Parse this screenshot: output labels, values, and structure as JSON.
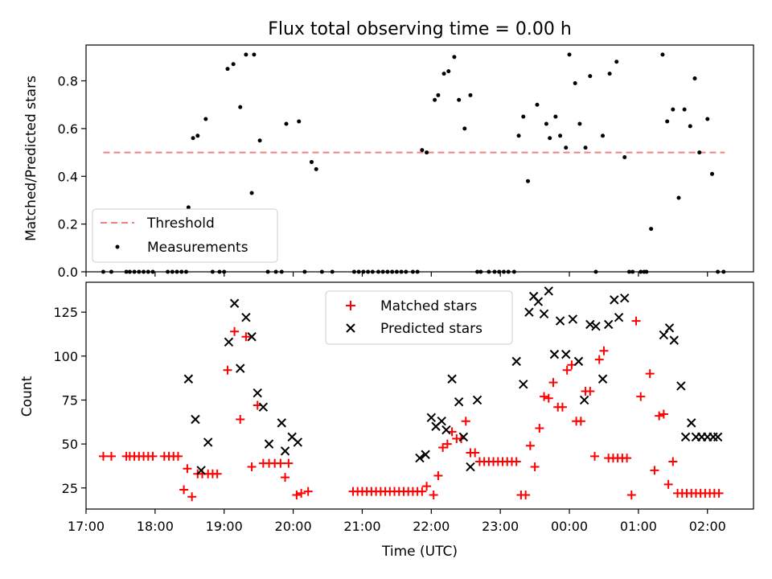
{
  "chart_data": [
    {
      "type": "scatter",
      "title": "Flux total observing time = 0.00 h",
      "xlabel": "",
      "ylabel": "Matched/Predicted stars",
      "xlim": [
        "17:00",
        "02:40"
      ],
      "ylim": [
        0,
        0.95
      ],
      "yticks": [
        0.0,
        0.2,
        0.4,
        0.6,
        0.8
      ],
      "ytick_labels": [
        "0.0",
        "0.2",
        "0.4",
        "0.6",
        "0.8"
      ],
      "grid": false,
      "legend": {
        "placement": "lower-left",
        "entries": [
          "Threshold",
          "Measurements"
        ]
      },
      "series": [
        {
          "name": "Threshold",
          "style": "dashed-line",
          "color": "#f08080",
          "x": [
            "17:15",
            "02:15"
          ],
          "y": [
            0.5,
            0.5
          ]
        },
        {
          "name": "Measurements",
          "style": "dot",
          "color": "#000000",
          "x": [
            "17:15",
            "17:22",
            "17:35",
            "17:38",
            "17:42",
            "17:46",
            "17:50",
            "17:54",
            "17:58",
            "18:11",
            "18:15",
            "18:19",
            "18:23",
            "18:27",
            "18:29",
            "18:33",
            "18:37",
            "18:44",
            "18:50",
            "18:56",
            "19:00",
            "19:03",
            "19:08",
            "19:14",
            "19:19",
            "19:24",
            "19:26",
            "19:31",
            "19:38",
            "19:45",
            "19:50",
            "19:54",
            "20:05",
            "20:10",
            "20:16",
            "20:20",
            "20:25",
            "20:34",
            "20:53",
            "20:57",
            "21:01",
            "21:05",
            "21:09",
            "21:14",
            "21:18",
            "21:22",
            "21:26",
            "21:30",
            "21:34",
            "21:38",
            "21:44",
            "21:48",
            "21:52",
            "21:56",
            "22:03",
            "22:06",
            "22:11",
            "22:15",
            "22:20",
            "22:24",
            "22:29",
            "22:34",
            "22:40",
            "22:43",
            "22:50",
            "22:55",
            "22:59",
            "23:03",
            "23:07",
            "23:12",
            "23:16",
            "23:20",
            "23:24",
            "23:32",
            "23:40",
            "23:43",
            "23:48",
            "23:52",
            "23:57",
            "00:00",
            "00:05",
            "00:09",
            "00:14",
            "00:18",
            "00:23",
            "00:29",
            "00:35",
            "00:41",
            "00:48",
            "00:52",
            "00:55",
            "01:02",
            "01:05",
            "01:07",
            "01:11",
            "01:21",
            "01:25",
            "01:30",
            "01:35",
            "01:40",
            "01:45",
            "01:49",
            "01:53",
            "02:00",
            "02:04",
            "02:09",
            "02:14"
          ],
          "y": [
            0.0,
            0.0,
            0.0,
            0.0,
            0.0,
            0.0,
            0.0,
            0.0,
            0.0,
            0.0,
            0.0,
            0.0,
            0.0,
            0.0,
            0.27,
            0.56,
            0.57,
            0.64,
            0.0,
            0.0,
            0.0,
            0.85,
            0.87,
            0.69,
            0.91,
            0.33,
            0.91,
            0.55,
            0.0,
            0.0,
            0.0,
            0.62,
            0.63,
            0.0,
            0.46,
            0.43,
            0.0,
            0.0,
            0.0,
            0.0,
            0.0,
            0.0,
            0.0,
            0.0,
            0.0,
            0.0,
            0.0,
            0.0,
            0.0,
            0.0,
            0.0,
            0.0,
            0.51,
            0.5,
            0.72,
            0.74,
            0.83,
            0.84,
            0.9,
            0.72,
            0.6,
            0.74,
            0.0,
            0.0,
            0.0,
            0.0,
            0.0,
            0.0,
            0.0,
            0.0,
            0.57,
            0.65,
            0.38,
            0.7,
            0.62,
            0.56,
            0.65,
            0.57,
            0.52,
            0.91,
            0.79,
            0.62,
            0.52,
            0.82,
            0.0,
            0.57,
            0.83,
            0.88,
            0.48,
            0.0,
            0.0,
            0.0,
            0.0,
            0.0,
            0.18,
            0.91,
            0.63,
            0.68,
            0.31,
            0.68,
            0.61,
            0.81,
            0.5,
            0.64,
            0.41,
            0.0,
            0.0
          ]
        }
      ]
    },
    {
      "type": "scatter",
      "title": "",
      "xlabel": "Time (UTC)",
      "ylabel": "Count",
      "xlim": [
        "17:00",
        "02:40"
      ],
      "ylim": [
        13,
        142
      ],
      "yticks": [
        25,
        50,
        75,
        100,
        125
      ],
      "ytick_labels": [
        "25",
        "50",
        "75",
        "100",
        "125"
      ],
      "xticks": [
        "17:00",
        "18:00",
        "19:00",
        "20:00",
        "21:00",
        "22:00",
        "23:00",
        "00:00",
        "01:00",
        "02:00"
      ],
      "xtick_labels": [
        "17:00",
        "18:00",
        "19:00",
        "20:00",
        "21:00",
        "22:00",
        "23:00",
        "00:00",
        "01:00",
        "02:00"
      ],
      "grid": false,
      "legend": {
        "placement": "top-center",
        "entries": [
          "Matched stars",
          "Predicted stars"
        ]
      },
      "series": [
        {
          "name": "Matched stars",
          "marker": "plus",
          "color": "#ff0000",
          "x": [
            "17:15",
            "17:22",
            "17:35",
            "17:38",
            "17:42",
            "17:46",
            "17:50",
            "17:54",
            "17:58",
            "18:08",
            "18:12",
            "18:16",
            "18:20",
            "18:25",
            "18:28",
            "18:32",
            "18:37",
            "18:41",
            "18:46",
            "18:50",
            "18:54",
            "19:03",
            "19:09",
            "19:14",
            "19:19",
            "19:24",
            "19:29",
            "19:34",
            "19:39",
            "19:44",
            "19:49",
            "19:53",
            "19:56",
            "20:03",
            "20:07",
            "20:13",
            "20:52",
            "20:56",
            "21:00",
            "21:04",
            "21:08",
            "21:12",
            "21:16",
            "21:20",
            "21:24",
            "21:28",
            "21:32",
            "21:36",
            "21:40",
            "21:44",
            "21:48",
            "21:52",
            "21:56",
            "22:02",
            "22:06",
            "22:10",
            "22:14",
            "22:18",
            "22:22",
            "22:26",
            "22:30",
            "22:34",
            "22:38",
            "22:42",
            "22:46",
            "22:50",
            "22:54",
            "22:58",
            "23:02",
            "23:06",
            "23:10",
            "23:14",
            "23:18",
            "23:22",
            "23:26",
            "23:30",
            "23:34",
            "23:38",
            "23:42",
            "23:46",
            "23:50",
            "23:54",
            "23:58",
            "00:02",
            "00:06",
            "00:10",
            "00:14",
            "00:18",
            "00:22",
            "00:26",
            "00:30",
            "00:34",
            "00:38",
            "00:42",
            "00:46",
            "00:50",
            "00:54",
            "00:58",
            "01:02",
            "01:10",
            "01:14",
            "01:18",
            "01:22",
            "01:26",
            "01:30",
            "01:34",
            "01:38",
            "01:42",
            "01:46",
            "01:50",
            "01:54",
            "01:58",
            "02:02",
            "02:06",
            "02:10"
          ],
          "y": [
            43,
            43,
            43,
            43,
            43,
            43,
            43,
            43,
            43,
            43,
            43,
            43,
            43,
            24,
            36,
            20,
            33,
            33,
            33,
            33,
            33,
            92,
            114,
            64,
            111,
            37,
            72,
            39,
            39,
            39,
            39,
            31,
            39,
            21,
            22,
            23,
            23,
            23,
            23,
            23,
            23,
            23,
            23,
            23,
            23,
            23,
            23,
            23,
            23,
            23,
            23,
            23,
            26,
            21,
            32,
            48,
            50,
            57,
            53,
            53,
            63,
            45,
            45,
            40,
            40,
            40,
            40,
            40,
            40,
            40,
            40,
            40,
            21,
            21,
            49,
            37,
            59,
            77,
            76,
            85,
            71,
            71,
            92,
            95,
            63,
            63,
            80,
            80,
            43,
            98,
            103,
            42,
            42,
            42,
            42,
            42,
            21,
            120,
            77,
            90,
            35,
            66,
            67,
            27,
            40,
            22,
            22,
            22,
            22,
            22,
            22,
            22,
            22,
            22,
            22
          ],
          "note": "approximate"
        },
        {
          "name": "Predicted stars",
          "marker": "x",
          "color": "#000000",
          "x": [
            "18:29",
            "18:35",
            "18:40",
            "18:46",
            "19:04",
            "19:09",
            "19:14",
            "19:19",
            "19:24",
            "19:29",
            "19:34",
            "19:39",
            "19:50",
            "19:53",
            "19:59",
            "20:04",
            "21:50",
            "21:55",
            "22:00",
            "22:04",
            "22:09",
            "22:13",
            "22:18",
            "22:24",
            "22:28",
            "22:34",
            "22:40",
            "23:14",
            "23:20",
            "23:25",
            "23:29",
            "23:33",
            "23:38",
            "23:42",
            "23:47",
            "23:52",
            "23:57",
            "00:03",
            "00:08",
            "00:13",
            "00:18",
            "00:23",
            "00:29",
            "00:34",
            "00:39",
            "00:43",
            "00:48",
            "01:22",
            "01:27",
            "01:31",
            "01:37",
            "01:41",
            "01:46",
            "01:50",
            "01:55",
            "02:00",
            "02:05",
            "02:09"
          ],
          "y": [
            87,
            64,
            35,
            51,
            108,
            130,
            93,
            122,
            111,
            79,
            71,
            50,
            62,
            46,
            54,
            51,
            42,
            44,
            65,
            60,
            63,
            58,
            87,
            74,
            54,
            37,
            75,
            97,
            84,
            125,
            134,
            131,
            124,
            137,
            101,
            120,
            101,
            121,
            97,
            75,
            118,
            117,
            87,
            118,
            132,
            122,
            133,
            112,
            116,
            109,
            83,
            54,
            62,
            54,
            54,
            54,
            54,
            54
          ]
        }
      ]
    }
  ]
}
